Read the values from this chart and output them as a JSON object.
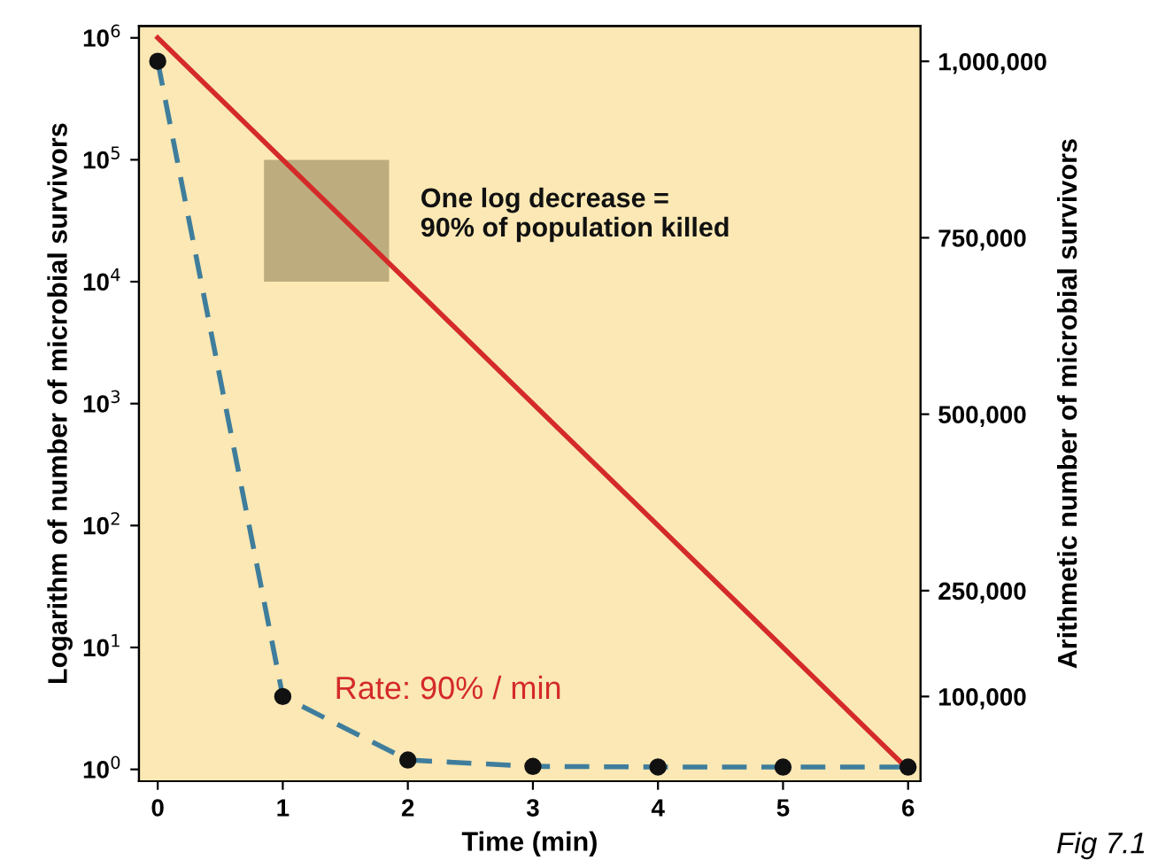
{
  "chart_data": {
    "type": "line",
    "xlabel": "Time (min)",
    "ylabel": "Logarithm of number of microbial survivors",
    "y2label": "Arithmetic number of microbial survivors",
    "x": [
      0,
      1,
      2,
      3,
      4,
      5,
      6
    ],
    "series": [
      {
        "color": "#d42a2a",
        "values": [
          1000000,
          100000,
          10000,
          1000,
          100,
          10,
          1
        ],
        "line_style": "solid",
        "marker": "none"
      },
      {
        "color": "#3f7d9c",
        "values": [
          1000000,
          100000,
          10000,
          1000,
          100,
          10,
          1
        ],
        "axis": "y2",
        "line_style": "dashed",
        "marker": "circle"
      }
    ],
    "log": "y",
    "xlim": [
      -0.15,
      6.1
    ],
    "xticks": [
      0,
      1,
      2,
      3,
      4,
      5,
      6
    ],
    "ylim": [
      0.8,
      1250000
    ],
    "yticks": [
      {
        "value": 1,
        "label": "10$^{0}$"
      },
      {
        "value": 10,
        "label": "10$^{1}$"
      },
      {
        "value": 100,
        "label": "10$^{2}$"
      },
      {
        "value": 1000,
        "label": "10$^{3}$"
      },
      {
        "value": 10000,
        "label": "10$^{4}$"
      },
      {
        "value": 100000,
        "label": "10$^{5}$"
      },
      {
        "value": 1000000,
        "label": "10$^{6}$"
      }
    ],
    "y2lim": [
      -20000,
      1050000
    ],
    "y2ticks": [
      {
        "value": 100000,
        "label": "100,000"
      },
      {
        "value": 250000,
        "label": "250,000"
      },
      {
        "value": 500000,
        "label": "500,000"
      },
      {
        "value": 750000,
        "label": "750,000"
      },
      {
        "value": 1000000,
        "label": "1,000,000"
      }
    ],
    "grid": false,
    "legend": false,
    "annotations": [
      "One log decrease =\n90% of population killed",
      "Rate: 90% / min",
      "Fig 7.1"
    ]
  }
}
